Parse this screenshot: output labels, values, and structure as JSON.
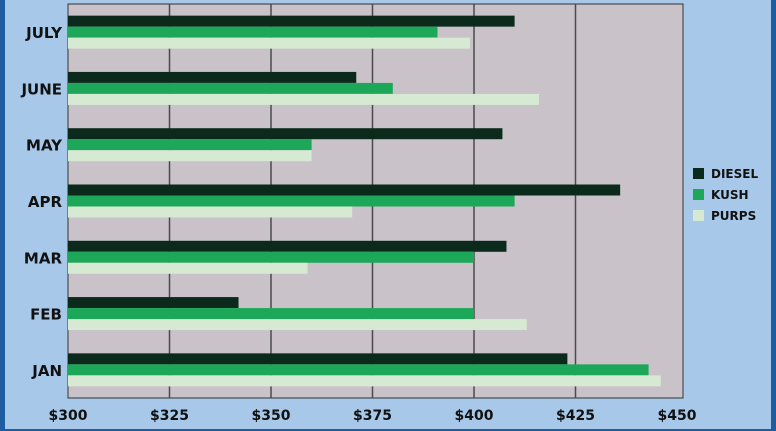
{
  "chart_data": {
    "type": "bar",
    "orientation": "horizontal",
    "title": "",
    "xlabel": "",
    "ylabel": "",
    "categories": [
      "JAN",
      "FEB",
      "MAR",
      "APR",
      "MAY",
      "JUNE",
      "JULY"
    ],
    "series": [
      {
        "name": "DIESEL",
        "color": "#0c2a1c",
        "values": [
          423,
          342,
          408,
          436,
          407,
          371,
          410
        ]
      },
      {
        "name": "KUSH",
        "color": "#1ca858",
        "values": [
          443,
          400,
          400,
          410,
          360,
          380,
          391
        ]
      },
      {
        "name": "PURPS",
        "color": "#d6e9d2",
        "values": [
          446,
          413,
          359,
          370,
          360,
          416,
          399
        ]
      }
    ],
    "xlim": [
      300,
      450
    ],
    "xticks": [
      "$300",
      "$325",
      "$350",
      "$375",
      "$400",
      "$425",
      "$450"
    ],
    "grid": "vertical",
    "legend_position": "right",
    "plot_background": "#c9c2c9"
  }
}
